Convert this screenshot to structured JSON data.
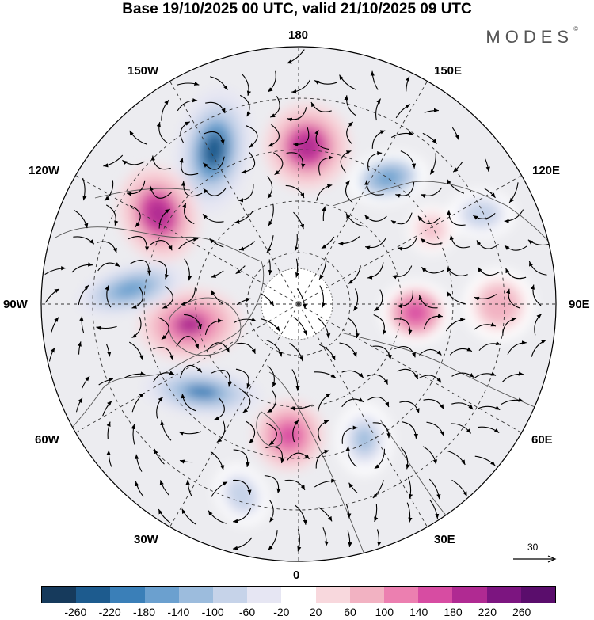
{
  "title": "Base 19/10/2025 00 UTC, valid 21/10/2025 09 UTC",
  "brand": {
    "name": "MODES",
    "mark": "©"
  },
  "longitude_labels": {
    "top": "180",
    "bottom": "0",
    "left": "90W",
    "right": "90E",
    "upper_left_1": "150W",
    "upper_left_2": "120W",
    "upper_right_1": "150E",
    "upper_right_2": "120E",
    "lower_left_1": "60W",
    "lower_left_2": "30W",
    "lower_right_1": "60E",
    "lower_right_2": "30E"
  },
  "reference_vector": {
    "label": "30"
  },
  "colorbar": {
    "colors": [
      "#163a5c",
      "#1d5b8e",
      "#3a7fb8",
      "#6ba0cf",
      "#9cbcdd",
      "#c6d3e9",
      "#e6e6f3",
      "#ffffff",
      "#f8d8dd",
      "#f2b2c2",
      "#ec7fb0",
      "#d74ca2",
      "#b02a92",
      "#7c1580",
      "#5a0d6c"
    ],
    "ticks": [
      "-260",
      "-220",
      "-180",
      "-140",
      "-100",
      "-60",
      "-20",
      "20",
      "60",
      "100",
      "140",
      "180",
      "220",
      "260"
    ]
  },
  "anomaly_centers": [
    {
      "sign": "negative",
      "strength": 280
    },
    {
      "sign": "positive",
      "strength": 240
    },
    {
      "sign": "positive",
      "strength": 250
    },
    {
      "sign": "negative",
      "strength": 190
    },
    {
      "sign": "positive",
      "strength": 220
    },
    {
      "sign": "negative",
      "strength": 200
    },
    {
      "sign": "positive",
      "strength": 180
    },
    {
      "sign": "negative",
      "strength": 230
    },
    {
      "sign": "negative",
      "strength": 150
    },
    {
      "sign": "positive",
      "strength": 200
    },
    {
      "sign": "negative",
      "strength": 120
    },
    {
      "sign": "positive",
      "strength": 110
    },
    {
      "sign": "negative",
      "strength": 110
    },
    {
      "sign": "positive",
      "strength": 90
    }
  ]
}
